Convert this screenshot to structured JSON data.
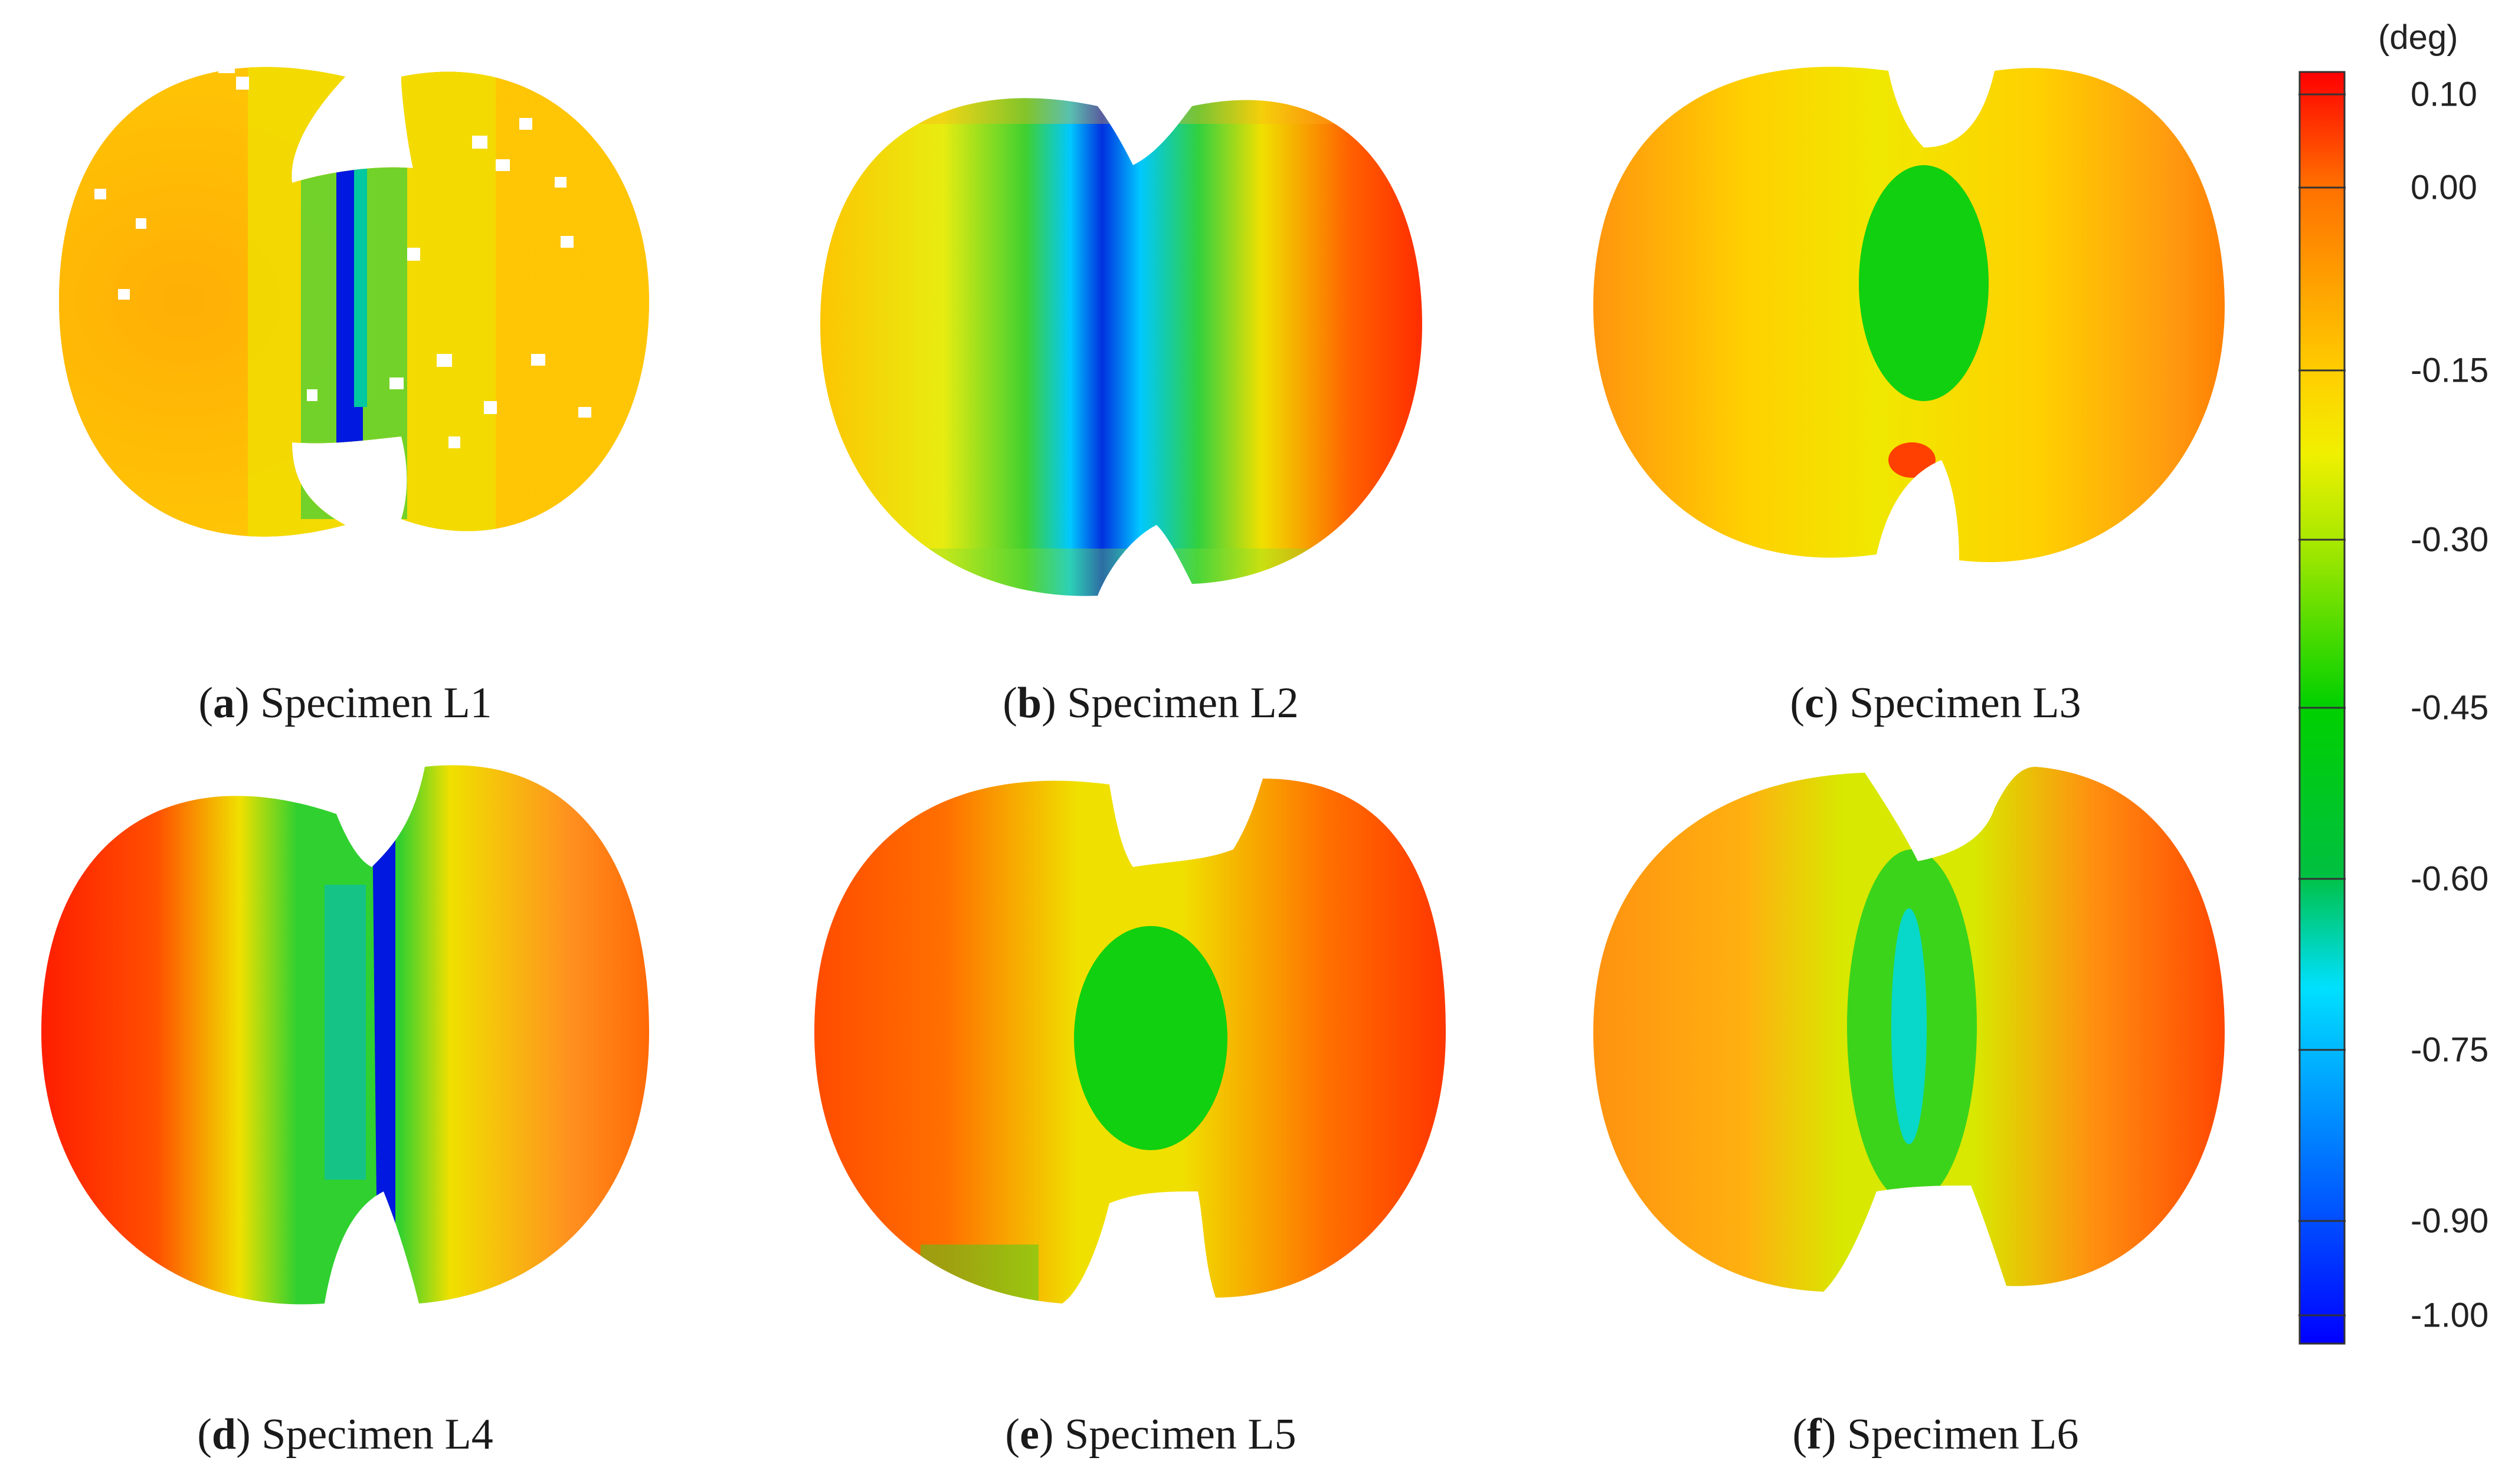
{
  "figure": {
    "panels": [
      {
        "letter": "a",
        "caption": "Specimen L1",
        "pattern": "narrow-blue-crack-band",
        "colors": [
          "#ffd700",
          "#ff7a00",
          "#00d000",
          "#0018e0"
        ]
      },
      {
        "letter": "b",
        "caption": "Specimen L2",
        "pattern": "wide-blue-cyan-band",
        "colors": [
          "#ffe000",
          "#00d000",
          "#00d8ff",
          "#0018e0",
          "#ff2a00"
        ]
      },
      {
        "letter": "c",
        "caption": "Specimen L3",
        "pattern": "central-green-patch",
        "colors": [
          "#ffd700",
          "#ff9000",
          "#00d000"
        ]
      },
      {
        "letter": "d",
        "caption": "Specimen L4",
        "pattern": "narrow-blue-crack-band",
        "colors": [
          "#ff2a00",
          "#ffd700",
          "#00d000",
          "#0018e0"
        ]
      },
      {
        "letter": "e",
        "caption": "Specimen L5",
        "pattern": "central-green-patch",
        "colors": [
          "#ff4a00",
          "#ffd700",
          "#00d000"
        ]
      },
      {
        "letter": "f",
        "caption": "Specimen L6",
        "pattern": "speckled-green-cyan-band",
        "colors": [
          "#ff6000",
          "#ffd700",
          "#00d000",
          "#00d8ff"
        ]
      }
    ],
    "colorbar": {
      "unit": "(deg)",
      "ticks": [
        "0.10",
        "0.00",
        "-0.15",
        "-0.30",
        "-0.45",
        "-0.60",
        "-0.75",
        "-0.90",
        "-1.00"
      ],
      "stops": [
        "#ff0000",
        "#ff7000",
        "#ffd000",
        "#f0f000",
        "#a8e800",
        "#00d000",
        "#00c040",
        "#00e0ff",
        "#0080ff",
        "#0000ff"
      ]
    }
  }
}
